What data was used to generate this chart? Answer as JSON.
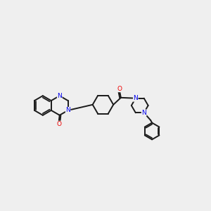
{
  "background_color": "#efefef",
  "bond_color": "#1a1a1a",
  "nitrogen_color": "#0000ee",
  "oxygen_color": "#ee0000",
  "bond_width": 1.4,
  "figsize": [
    3.0,
    3.0
  ],
  "dpi": 100,
  "xlim": [
    -1.0,
    11.5
  ],
  "ylim": [
    1.5,
    8.5
  ]
}
